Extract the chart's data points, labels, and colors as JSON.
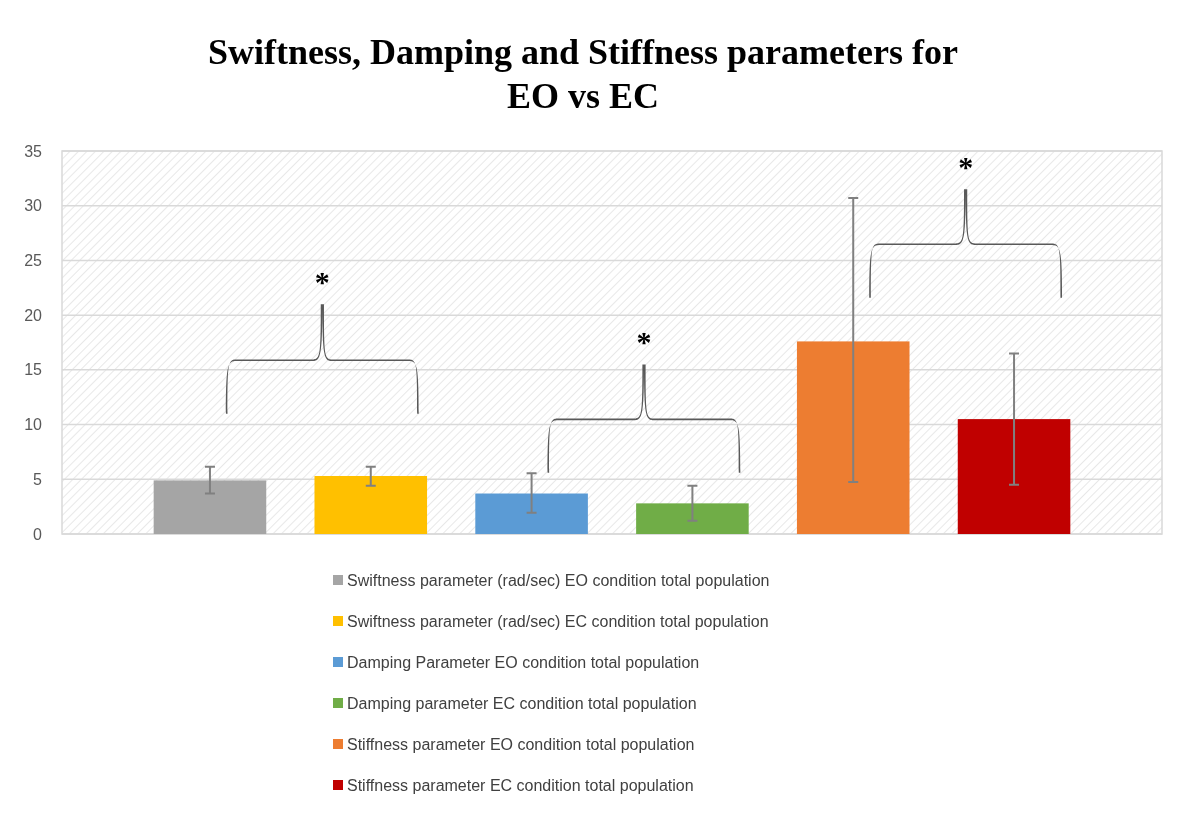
{
  "chart_data": {
    "type": "bar",
    "title": "Swiftness, Damping and Stiffness parameters for EO vs EC",
    "categories": [
      null
    ],
    "series": [
      {
        "name": "Swiftness parameter (rad/sec) EO condition total population",
        "color": "#a5a5a5",
        "values": [
          4.9
        ],
        "errors": [
          [
            3.7,
            6.15
          ]
        ]
      },
      {
        "name": "Swiftness parameter (rad/sec) EC condition total population",
        "color": "#ffc000",
        "values": [
          5.3
        ],
        "errors": [
          [
            4.4,
            6.15
          ]
        ]
      },
      {
        "name": "Damping Parameter EO condition total population",
        "color": "#5b9bd5",
        "values": [
          3.7
        ],
        "errors": [
          [
            1.95,
            5.55
          ]
        ]
      },
      {
        "name": "Damping parameter EC condition total population",
        "color": "#70ad47",
        "values": [
          2.8
        ],
        "errors": [
          [
            1.2,
            4.4
          ]
        ]
      },
      {
        "name": "Stiffness parameter EO condition total population",
        "color": "#ed7d31",
        "values": [
          17.6
        ],
        "errors": [
          [
            4.75,
            30.7
          ]
        ]
      },
      {
        "name": "Stiffness parameter EC condition total population",
        "color": "#c00000",
        "values": [
          10.5
        ],
        "errors": [
          [
            4.5,
            16.5
          ]
        ]
      }
    ],
    "ylim": [
      0,
      35
    ],
    "yticks": [
      0,
      5,
      10,
      15,
      20,
      25,
      30,
      35
    ],
    "grid": "y",
    "legend": "bottom",
    "annotations": [
      "*",
      "*",
      "*"
    ]
  }
}
